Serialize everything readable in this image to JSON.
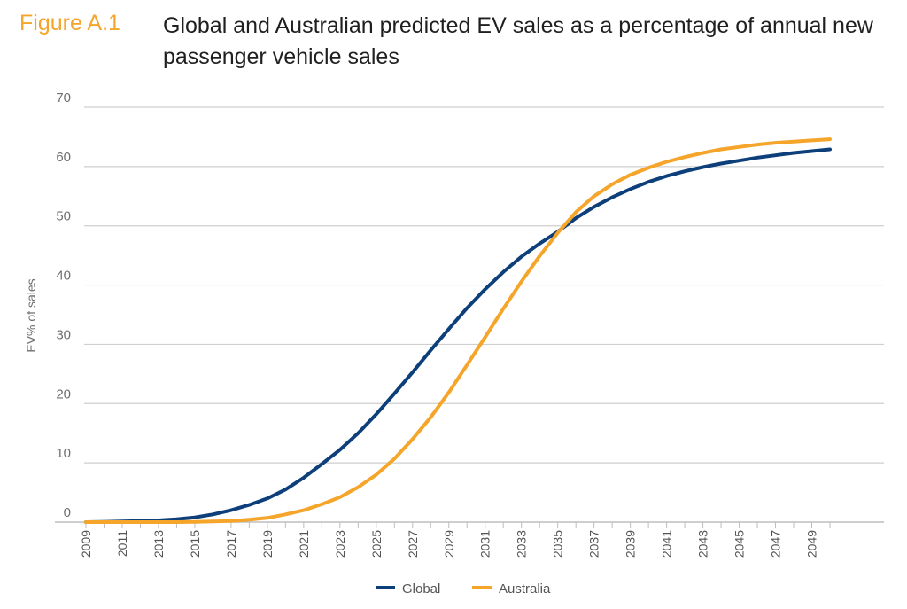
{
  "figure": {
    "label": "Figure A.1",
    "title": "Global and Australian predicted EV sales as a percentage of annual new passenger vehicle sales"
  },
  "chart_data": {
    "type": "line",
    "title": "Global and Australian predicted EV sales as a percentage of annual new passenger vehicle sales",
    "ylabel": "EV% of sales",
    "xlabel": "",
    "ylim": [
      0,
      70
    ],
    "yticks": [
      0,
      10,
      20,
      30,
      40,
      50,
      60,
      70
    ],
    "xlim": [
      2009,
      2050
    ],
    "xticks": [
      2009,
      2011,
      2013,
      2015,
      2017,
      2019,
      2021,
      2023,
      2025,
      2027,
      2029,
      2031,
      2033,
      2035,
      2037,
      2039,
      2041,
      2043,
      2045,
      2047,
      2049
    ],
    "grid": true,
    "legend": "bottom-center",
    "x": [
      2009,
      2010,
      2011,
      2012,
      2013,
      2014,
      2015,
      2016,
      2017,
      2018,
      2019,
      2020,
      2021,
      2022,
      2023,
      2024,
      2025,
      2026,
      2027,
      2028,
      2029,
      2030,
      2031,
      2032,
      2033,
      2034,
      2035,
      2036,
      2037,
      2038,
      2039,
      2040,
      2041,
      2042,
      2043,
      2044,
      2045,
      2046,
      2047,
      2048,
      2049,
      2050
    ],
    "series": [
      {
        "name": "Global",
        "color": "#0d3f7a",
        "values": [
          0,
          0.05,
          0.1,
          0.2,
          0.3,
          0.5,
          0.8,
          1.3,
          2.0,
          2.9,
          4.0,
          5.5,
          7.5,
          9.8,
          12.2,
          15.0,
          18.2,
          21.7,
          25.3,
          29.0,
          32.6,
          36.1,
          39.3,
          42.2,
          44.8,
          47.0,
          49.0,
          51.3,
          53.2,
          54.8,
          56.2,
          57.4,
          58.4,
          59.2,
          59.9,
          60.5,
          61.0,
          61.5,
          61.9,
          62.3,
          62.6,
          62.9
        ]
      },
      {
        "name": "Australia",
        "color": "#f4a52a",
        "values": [
          0,
          0,
          0,
          0,
          0,
          0,
          0.05,
          0.1,
          0.2,
          0.4,
          0.7,
          1.3,
          2.0,
          3.0,
          4.2,
          5.9,
          8.0,
          10.7,
          14.0,
          17.7,
          21.9,
          26.5,
          31.2,
          36.0,
          40.6,
          44.9,
          48.8,
          52.3,
          55.0,
          57.0,
          58.6,
          59.8,
          60.8,
          61.6,
          62.3,
          62.9,
          63.3,
          63.7,
          64.0,
          64.2,
          64.4,
          64.6
        ]
      }
    ]
  }
}
